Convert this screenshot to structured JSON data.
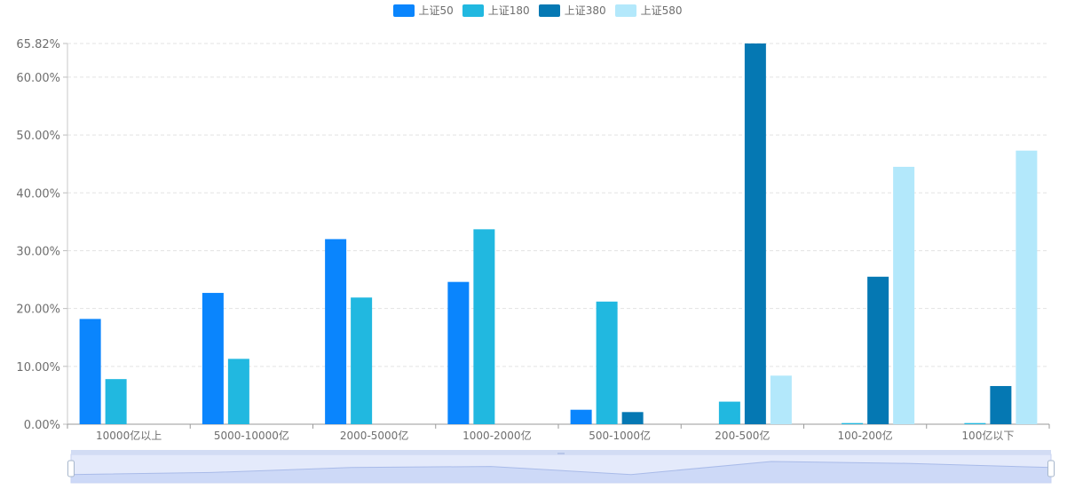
{
  "chart_data": {
    "type": "bar",
    "categories": [
      "10000亿以上",
      "5000-10000亿",
      "2000-5000亿",
      "1000-2000亿",
      "500-1000亿",
      "200-500亿",
      "100-200亿",
      "100亿以下"
    ],
    "series": [
      {
        "name": "上证50",
        "color": "#0a85fd",
        "values": [
          18.2,
          22.7,
          32.0,
          24.6,
          2.5,
          0,
          0,
          0
        ]
      },
      {
        "name": "上证180",
        "color": "#21b8e0",
        "values": [
          7.8,
          11.3,
          21.9,
          33.7,
          21.2,
          3.9,
          0.2,
          0.2
        ]
      },
      {
        "name": "上证380",
        "color": "#0578b3",
        "values": [
          0,
          0,
          0,
          0,
          2.1,
          65.82,
          25.5,
          6.6
        ]
      },
      {
        "name": "上证580",
        "color": "#b3e8fb",
        "values": [
          0,
          0,
          0,
          0,
          0,
          8.4,
          44.5,
          47.3
        ]
      }
    ],
    "y_ticks": [
      "0.00%",
      "10.00%",
      "20.00%",
      "30.00%",
      "40.00%",
      "50.00%",
      "60.00%",
      "65.82%"
    ],
    "ylim": [
      0,
      65.82
    ],
    "grid": true,
    "legend_position": "top-center",
    "datazoom": {
      "enabled": true,
      "range_percent": [
        0,
        100
      ]
    }
  }
}
